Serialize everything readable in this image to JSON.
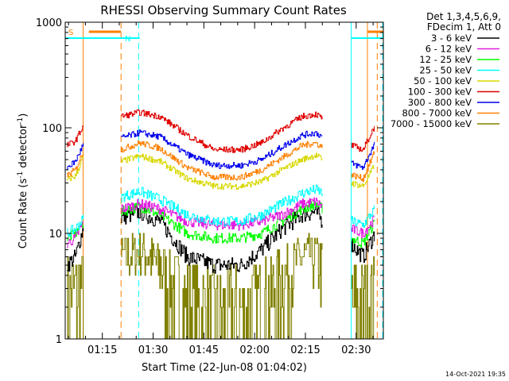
{
  "footer": {
    "timestamp": "14-Oct-2021 19:35"
  },
  "chart_data": {
    "type": "line",
    "title": "RHESSI Observing Summary Count Rates",
    "xlabel": "Start Time (22-Jun-08 01:04:02)",
    "ylabel": "Count Rate (s⁻¹ detector⁻¹)",
    "ylabel_parts": {
      "main": "Count Rate (s",
      "sup1": "-1",
      "mid": " detector",
      "sup2": "-1",
      "end": ")"
    },
    "y_scale": "log",
    "ylim": [
      1,
      1000
    ],
    "y_ticks": [
      1,
      10,
      100,
      1000
    ],
    "y_tick_labels": [
      "1",
      "10",
      "100",
      "1000"
    ],
    "x_unit": "minutes since 01:04:02",
    "xlim": [
      0,
      94
    ],
    "x_ticks": [
      10.97,
      25.97,
      40.97,
      55.97,
      70.97,
      85.97
    ],
    "x_tick_labels": [
      "01:15",
      "01:30",
      "01:45",
      "02:00",
      "02:15",
      "02:30"
    ],
    "grid": false,
    "legend_position": "outside-right",
    "legend_header": [
      "Det 1,3,4,5,6,9,",
      "FDecim 1, Att 0"
    ],
    "segments": [
      [
        0.5,
        5.5
      ],
      [
        16.5,
        76.0
      ],
      [
        84.5,
        91.5
      ]
    ],
    "series": [
      {
        "name": "3 - 6 keV",
        "color": "#000000",
        "noise": 0.08,
        "points": [
          [
            0.5,
            5
          ],
          [
            3,
            6
          ],
          [
            5.5,
            12
          ],
          [
            16.5,
            14
          ],
          [
            22,
            16
          ],
          [
            28,
            13
          ],
          [
            36,
            6
          ],
          [
            44,
            5
          ],
          [
            52,
            5
          ],
          [
            58,
            7
          ],
          [
            64,
            11
          ],
          [
            70,
            15
          ],
          [
            74,
            16
          ],
          [
            76,
            13
          ],
          [
            84.5,
            8
          ],
          [
            88,
            6
          ],
          [
            91.5,
            10
          ]
        ]
      },
      {
        "name": "6 - 12 keV",
        "color": "#e020e0",
        "noise": 0.05,
        "points": [
          [
            0.5,
            8
          ],
          [
            3,
            9
          ],
          [
            5.5,
            13
          ],
          [
            16.5,
            17
          ],
          [
            22,
            19
          ],
          [
            28,
            17
          ],
          [
            36,
            13
          ],
          [
            44,
            12
          ],
          [
            52,
            12
          ],
          [
            58,
            13
          ],
          [
            64,
            15
          ],
          [
            70,
            19
          ],
          [
            74,
            20
          ],
          [
            76,
            18
          ],
          [
            84.5,
            11
          ],
          [
            88,
            10
          ],
          [
            91.5,
            14
          ]
        ]
      },
      {
        "name": "12 - 25 keV",
        "color": "#00ff00",
        "noise": 0.05,
        "points": [
          [
            0.5,
            9
          ],
          [
            3,
            10
          ],
          [
            5.5,
            13
          ],
          [
            16.5,
            16
          ],
          [
            22,
            18
          ],
          [
            28,
            15
          ],
          [
            36,
            10
          ],
          [
            44,
            9
          ],
          [
            52,
            9
          ],
          [
            58,
            10
          ],
          [
            64,
            13
          ],
          [
            70,
            17
          ],
          [
            74,
            19
          ],
          [
            76,
            17
          ],
          [
            84.5,
            9
          ],
          [
            88,
            8
          ],
          [
            91.5,
            13
          ]
        ]
      },
      {
        "name": "25 - 50 keV",
        "color": "#00ffff",
        "noise": 0.05,
        "points": [
          [
            0.5,
            10
          ],
          [
            3,
            11
          ],
          [
            5.5,
            14
          ],
          [
            16.5,
            22
          ],
          [
            22,
            25
          ],
          [
            28,
            21
          ],
          [
            36,
            15
          ],
          [
            44,
            13
          ],
          [
            52,
            13
          ],
          [
            58,
            15
          ],
          [
            64,
            19
          ],
          [
            70,
            24
          ],
          [
            74,
            26
          ],
          [
            76,
            24
          ],
          [
            84.5,
            13
          ],
          [
            88,
            12
          ],
          [
            91.5,
            17
          ]
        ]
      },
      {
        "name": "50 - 100 keV",
        "color": "#d8d800",
        "noise": 0.03,
        "points": [
          [
            0.5,
            32
          ],
          [
            3,
            35
          ],
          [
            5.5,
            55
          ],
          [
            16.5,
            48
          ],
          [
            22,
            54
          ],
          [
            28,
            48
          ],
          [
            36,
            33
          ],
          [
            44,
            28
          ],
          [
            52,
            28
          ],
          [
            58,
            31
          ],
          [
            64,
            40
          ],
          [
            70,
            50
          ],
          [
            74,
            55
          ],
          [
            76,
            50
          ],
          [
            84.5,
            30
          ],
          [
            88,
            28
          ],
          [
            91.5,
            45
          ]
        ]
      },
      {
        "name": "100 - 300 keV",
        "color": "#e00000",
        "noise": 0.03,
        "points": [
          [
            0.5,
            68
          ],
          [
            3,
            75
          ],
          [
            5.5,
            108
          ],
          [
            16.5,
            128
          ],
          [
            22,
            140
          ],
          [
            28,
            128
          ],
          [
            36,
            85
          ],
          [
            44,
            62
          ],
          [
            52,
            62
          ],
          [
            58,
            72
          ],
          [
            64,
            98
          ],
          [
            70,
            128
          ],
          [
            74,
            135
          ],
          [
            76,
            122
          ],
          [
            84.5,
            68
          ],
          [
            88,
            62
          ],
          [
            91.5,
            105
          ]
        ]
      },
      {
        "name": "300 - 800 keV",
        "color": "#0000ee",
        "noise": 0.03,
        "points": [
          [
            0.5,
            42
          ],
          [
            3,
            48
          ],
          [
            5.5,
            72
          ],
          [
            16.5,
            80
          ],
          [
            22,
            90
          ],
          [
            28,
            82
          ],
          [
            36,
            56
          ],
          [
            44,
            44
          ],
          [
            52,
            44
          ],
          [
            58,
            50
          ],
          [
            64,
            66
          ],
          [
            70,
            85
          ],
          [
            74,
            90
          ],
          [
            76,
            82
          ],
          [
            84.5,
            46
          ],
          [
            88,
            42
          ],
          [
            91.5,
            72
          ]
        ]
      },
      {
        "name": "800 - 7000 keV",
        "color": "#ff8000",
        "noise": 0.03,
        "points": [
          [
            0.5,
            35
          ],
          [
            3,
            40
          ],
          [
            5.5,
            62
          ],
          [
            16.5,
            62
          ],
          [
            22,
            72
          ],
          [
            28,
            64
          ],
          [
            36,
            42
          ],
          [
            44,
            34
          ],
          [
            52,
            34
          ],
          [
            58,
            40
          ],
          [
            64,
            52
          ],
          [
            70,
            68
          ],
          [
            74,
            72
          ],
          [
            76,
            65
          ],
          [
            84.5,
            36
          ],
          [
            88,
            33
          ],
          [
            91.5,
            60
          ]
        ]
      },
      {
        "name": "7000 - 15000 keV",
        "color": "#808000",
        "noise": 0.18,
        "points": [
          [
            0.5,
            2.5
          ],
          [
            3,
            3
          ],
          [
            5.5,
            3.5
          ],
          [
            16.5,
            6
          ],
          [
            22,
            7
          ],
          [
            28,
            5
          ],
          [
            36,
            2
          ],
          [
            44,
            1.5
          ],
          [
            52,
            1.5
          ],
          [
            58,
            2
          ],
          [
            64,
            4
          ],
          [
            70,
            6
          ],
          [
            74,
            6
          ],
          [
            76,
            5
          ],
          [
            84.5,
            2
          ],
          [
            88,
            2
          ],
          [
            91.5,
            2.5
          ]
        ]
      }
    ],
    "flags": [
      {
        "label": "S",
        "color": "#ff8000",
        "bar_ranges": [
          [
            7,
            16.5
          ],
          [
            89.3,
            94
          ]
        ]
      },
      {
        "label": "N",
        "color": "#00ffff",
        "bar_ranges": [
          [
            0,
            22
          ],
          [
            84.5,
            94
          ]
        ]
      }
    ],
    "vertical_markers": [
      {
        "x": 0.0,
        "color": "#00ffff",
        "style": "solid"
      },
      {
        "x": 5.3,
        "color": "#ff8000",
        "style": "solid"
      },
      {
        "x": 16.5,
        "color": "#ff8000",
        "style": "dashed"
      },
      {
        "x": 21.7,
        "color": "#00ffff",
        "style": "dashed"
      },
      {
        "x": 84.5,
        "color": "#00ffff",
        "style": "solid"
      },
      {
        "x": 89.3,
        "color": "#ff8000",
        "style": "solid"
      },
      {
        "x": 92.2,
        "color": "#ff8000",
        "style": "dashed"
      },
      {
        "x": 93.8,
        "color": "#00ffff",
        "style": "dashed"
      }
    ]
  }
}
